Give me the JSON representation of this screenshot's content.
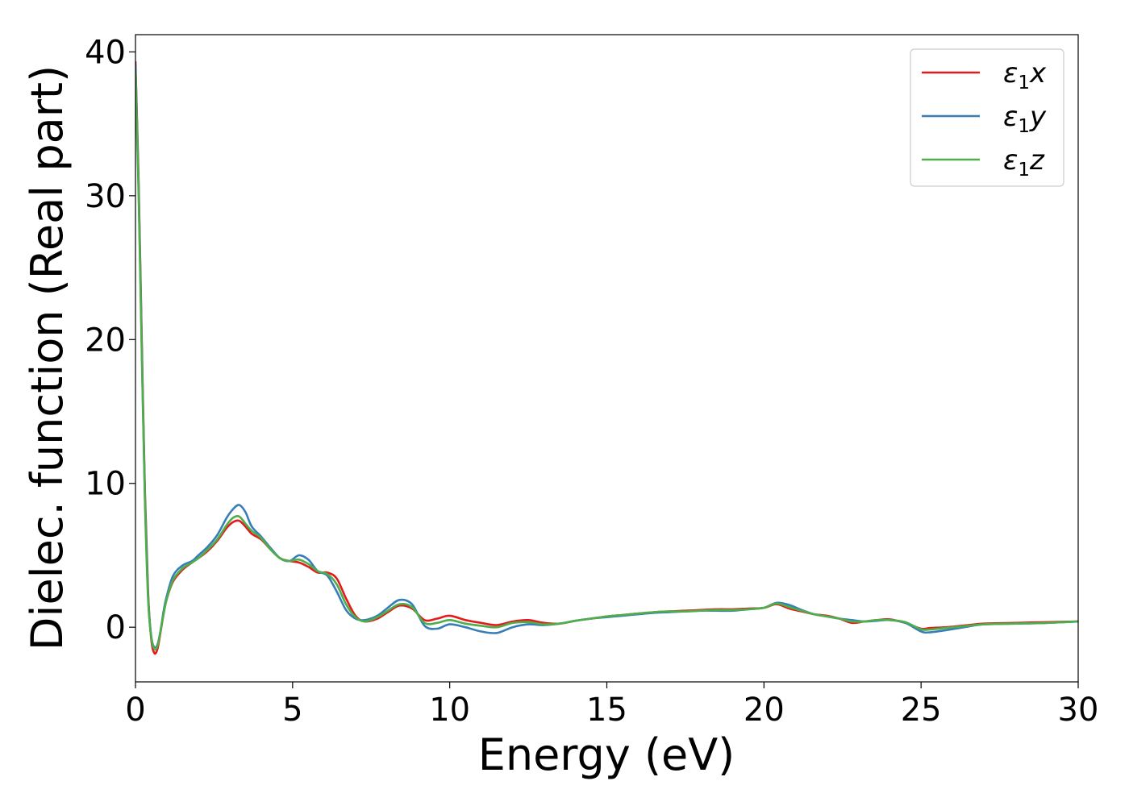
{
  "chart_data": {
    "type": "line",
    "title": "",
    "xlabel": "Energy (eV)",
    "ylabel": "Dielec. function (Real part)",
    "xlim": [
      0,
      30
    ],
    "ylim": [
      -3.8,
      41.2
    ],
    "x_ticks": [
      0,
      5,
      10,
      15,
      20,
      25,
      30
    ],
    "y_ticks": [
      0,
      10,
      20,
      30,
      40
    ],
    "grid": false,
    "legend_position": "top-right",
    "series": [
      {
        "name": "ε₁x",
        "legend_base": "ε",
        "legend_sub": "1",
        "legend_var": "x",
        "color": "#e41a1c",
        "x": [
          0,
          0.1,
          0.2,
          0.3,
          0.4,
          0.5,
          0.6,
          0.7,
          0.8,
          0.9,
          1.0,
          1.2,
          1.5,
          1.8,
          2.0,
          2.3,
          2.6,
          2.9,
          3.1,
          3.3,
          3.5,
          3.7,
          4.0,
          4.3,
          4.6,
          4.9,
          5.2,
          5.5,
          5.8,
          6.1,
          6.4,
          6.7,
          7.0,
          7.3,
          7.7,
          8.0,
          8.4,
          8.8,
          9.2,
          9.6,
          10.0,
          10.5,
          11.0,
          11.5,
          12.0,
          12.5,
          13.0,
          13.5,
          14.0,
          14.5,
          15.0,
          15.5,
          16.0,
          16.5,
          17.0,
          17.5,
          18.0,
          18.5,
          19.0,
          19.5,
          20.0,
          20.4,
          20.8,
          21.2,
          21.6,
          22.0,
          22.4,
          22.8,
          23.2,
          23.6,
          24.0,
          24.5,
          25.0,
          25.3,
          25.8,
          26.5,
          27.0,
          28.0,
          29.0,
          30.0
        ],
        "values": [
          39.3,
          31.0,
          20.0,
          9.5,
          2.5,
          -0.8,
          -1.8,
          -1.5,
          -0.3,
          1.0,
          2.0,
          3.2,
          4.0,
          4.5,
          4.8,
          5.3,
          6.0,
          6.9,
          7.3,
          7.4,
          7.0,
          6.5,
          6.1,
          5.4,
          4.8,
          4.6,
          4.5,
          4.2,
          3.8,
          3.8,
          3.4,
          2.0,
          0.8,
          0.4,
          0.6,
          1.0,
          1.5,
          1.3,
          0.5,
          0.6,
          0.8,
          0.5,
          0.3,
          0.15,
          0.4,
          0.5,
          0.3,
          0.25,
          0.45,
          0.6,
          0.75,
          0.85,
          0.95,
          1.05,
          1.1,
          1.15,
          1.2,
          1.25,
          1.25,
          1.3,
          1.35,
          1.6,
          1.3,
          1.1,
          0.9,
          0.8,
          0.6,
          0.3,
          0.4,
          0.5,
          0.55,
          0.3,
          -0.1,
          -0.05,
          0.0,
          0.15,
          0.25,
          0.3,
          0.35,
          0.4
        ]
      },
      {
        "name": "ε₁y",
        "legend_base": "ε",
        "legend_sub": "1",
        "legend_var": "y",
        "color": "#377eb8",
        "x": [
          0,
          0.1,
          0.2,
          0.3,
          0.4,
          0.5,
          0.6,
          0.7,
          0.8,
          0.9,
          1.0,
          1.2,
          1.5,
          1.8,
          2.0,
          2.3,
          2.6,
          2.9,
          3.1,
          3.3,
          3.5,
          3.7,
          4.0,
          4.3,
          4.6,
          4.9,
          5.2,
          5.5,
          5.8,
          6.1,
          6.4,
          6.7,
          7.0,
          7.3,
          7.7,
          8.0,
          8.4,
          8.8,
          9.2,
          9.6,
          10.0,
          10.5,
          11.0,
          11.5,
          12.0,
          12.5,
          13.0,
          13.5,
          14.0,
          14.5,
          15.0,
          15.5,
          16.0,
          16.5,
          17.0,
          17.5,
          18.0,
          18.5,
          19.0,
          19.5,
          20.0,
          20.4,
          20.8,
          21.2,
          21.6,
          22.0,
          22.4,
          22.8,
          23.2,
          23.6,
          24.0,
          24.5,
          25.0,
          25.3,
          25.8,
          26.5,
          27.0,
          28.0,
          29.0,
          30.0
        ],
        "values": [
          39.0,
          30.5,
          19.5,
          9.0,
          2.2,
          -0.6,
          -1.4,
          -1.2,
          -0.2,
          1.2,
          2.2,
          3.6,
          4.3,
          4.6,
          5.0,
          5.6,
          6.4,
          7.6,
          8.2,
          8.5,
          8.0,
          7.0,
          6.3,
          5.5,
          4.8,
          4.6,
          5.0,
          4.7,
          3.9,
          3.6,
          2.5,
          1.2,
          0.6,
          0.5,
          0.8,
          1.3,
          1.9,
          1.6,
          0.1,
          -0.1,
          0.2,
          0.0,
          -0.3,
          -0.4,
          0.0,
          0.2,
          0.15,
          0.25,
          0.45,
          0.6,
          0.7,
          0.8,
          0.9,
          1.0,
          1.05,
          1.1,
          1.15,
          1.15,
          1.15,
          1.25,
          1.35,
          1.7,
          1.55,
          1.2,
          0.9,
          0.75,
          0.6,
          0.5,
          0.4,
          0.45,
          0.5,
          0.3,
          -0.3,
          -0.35,
          -0.2,
          0.05,
          0.2,
          0.25,
          0.3,
          0.4
        ]
      },
      {
        "name": "ε₁z",
        "legend_base": "ε",
        "legend_sub": "1",
        "legend_var": "z",
        "color": "#4daf4a",
        "x": [
          0,
          0.1,
          0.2,
          0.3,
          0.4,
          0.5,
          0.6,
          0.7,
          0.8,
          0.9,
          1.0,
          1.2,
          1.5,
          1.8,
          2.0,
          2.3,
          2.6,
          2.9,
          3.1,
          3.3,
          3.5,
          3.7,
          4.0,
          4.3,
          4.6,
          4.9,
          5.2,
          5.5,
          5.8,
          6.1,
          6.4,
          6.7,
          7.0,
          7.3,
          7.7,
          8.0,
          8.4,
          8.8,
          9.2,
          9.6,
          10.0,
          10.5,
          11.0,
          11.5,
          12.0,
          12.5,
          13.0,
          13.5,
          14.0,
          14.5,
          15.0,
          15.5,
          16.0,
          16.5,
          17.0,
          17.5,
          18.0,
          18.5,
          19.0,
          19.5,
          20.0,
          20.4,
          20.8,
          21.2,
          21.6,
          22.0,
          22.4,
          22.8,
          23.2,
          23.6,
          24.0,
          24.5,
          25.0,
          25.3,
          25.8,
          26.5,
          27.0,
          28.0,
          29.0,
          30.0
        ],
        "values": [
          38.5,
          30.0,
          19.0,
          8.8,
          2.0,
          -0.7,
          -1.5,
          -1.3,
          -0.2,
          1.0,
          2.0,
          3.3,
          4.1,
          4.5,
          4.8,
          5.4,
          6.1,
          7.1,
          7.6,
          7.7,
          7.2,
          6.7,
          6.2,
          5.4,
          4.8,
          4.6,
          4.7,
          4.4,
          3.9,
          3.7,
          3.0,
          1.6,
          0.7,
          0.4,
          0.7,
          1.1,
          1.6,
          1.4,
          0.3,
          0.3,
          0.5,
          0.25,
          0.1,
          0.0,
          0.3,
          0.35,
          0.2,
          0.25,
          0.45,
          0.6,
          0.75,
          0.85,
          0.95,
          1.05,
          1.1,
          1.1,
          1.15,
          1.2,
          1.2,
          1.25,
          1.35,
          1.65,
          1.4,
          1.15,
          0.9,
          0.75,
          0.6,
          0.4,
          0.4,
          0.5,
          0.5,
          0.35,
          -0.15,
          -0.15,
          -0.05,
          0.1,
          0.2,
          0.25,
          0.3,
          0.4
        ]
      }
    ]
  }
}
